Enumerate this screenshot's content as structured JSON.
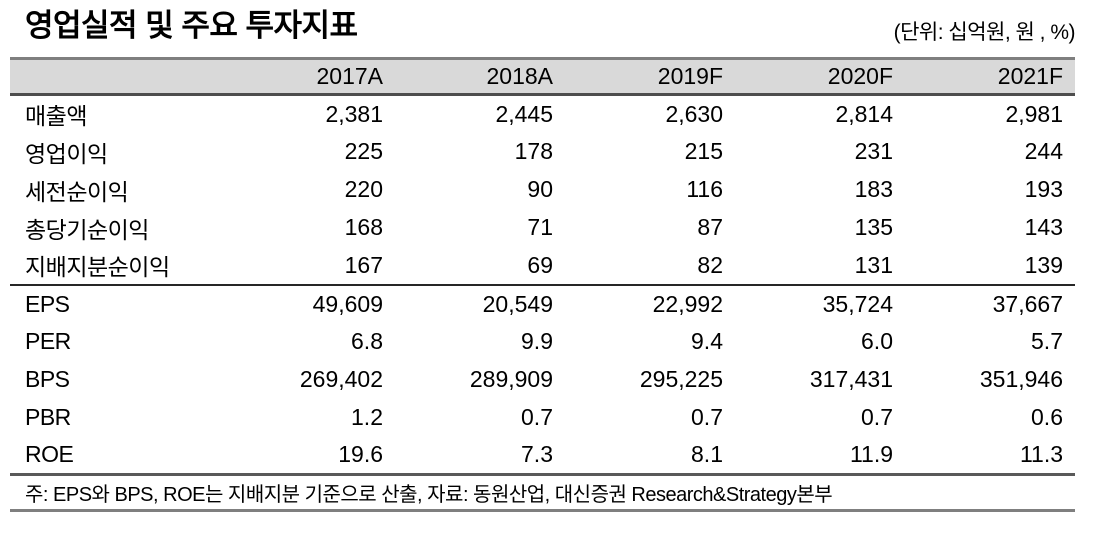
{
  "page": {
    "title": "영업실적 및 주요 투자지표",
    "unit_label": "(단위: 십억원, 원 , %)"
  },
  "table": {
    "columns": [
      "",
      "2017A",
      "2018A",
      "2019F",
      "2020F",
      "2021F"
    ],
    "rows": [
      {
        "label": "매출액",
        "group": "earnings",
        "values": [
          "2,381",
          "2,445",
          "2,630",
          "2,814",
          "2,981"
        ]
      },
      {
        "label": "영업이익",
        "group": "earnings",
        "values": [
          "225",
          "178",
          "215",
          "231",
          "244"
        ]
      },
      {
        "label": "세전순이익",
        "group": "earnings",
        "values": [
          "220",
          "90",
          "116",
          "183",
          "193"
        ]
      },
      {
        "label": "총당기순이익",
        "group": "earnings",
        "values": [
          "168",
          "71",
          "87",
          "135",
          "143"
        ]
      },
      {
        "label": "지배지분순이익",
        "group": "earnings",
        "values": [
          "167",
          "69",
          "82",
          "131",
          "139"
        ]
      },
      {
        "label": "EPS",
        "group": "ratios",
        "values": [
          "49,609",
          "20,549",
          "22,992",
          "35,724",
          "37,667"
        ]
      },
      {
        "label": "PER",
        "group": "ratios",
        "values": [
          "6.8",
          "9.9",
          "9.4",
          "6.0",
          "5.7"
        ]
      },
      {
        "label": "BPS",
        "group": "ratios",
        "values": [
          "269,402",
          "289,909",
          "295,225",
          "317,431",
          "351,946"
        ]
      },
      {
        "label": "PBR",
        "group": "ratios",
        "values": [
          "1.2",
          "0.7",
          "0.7",
          "0.7",
          "0.6"
        ]
      },
      {
        "label": "ROE",
        "group": "ratios",
        "values": [
          "19.6",
          "7.3",
          "8.1",
          "11.9",
          "11.3"
        ]
      }
    ],
    "footnote": "주: EPS와 BPS, ROE는 지배지분 기준으로 산출, 자료: 동원산업, 대신증권 Research&Strategy본부"
  },
  "colors": {
    "header_band": "#d9d9d9",
    "rule_top": "#7f7f7f",
    "rule_header_bottom": "#4d4d4d",
    "rule_section": "#262626",
    "rule_footer": "#7f7f7f",
    "text": "#000000"
  }
}
